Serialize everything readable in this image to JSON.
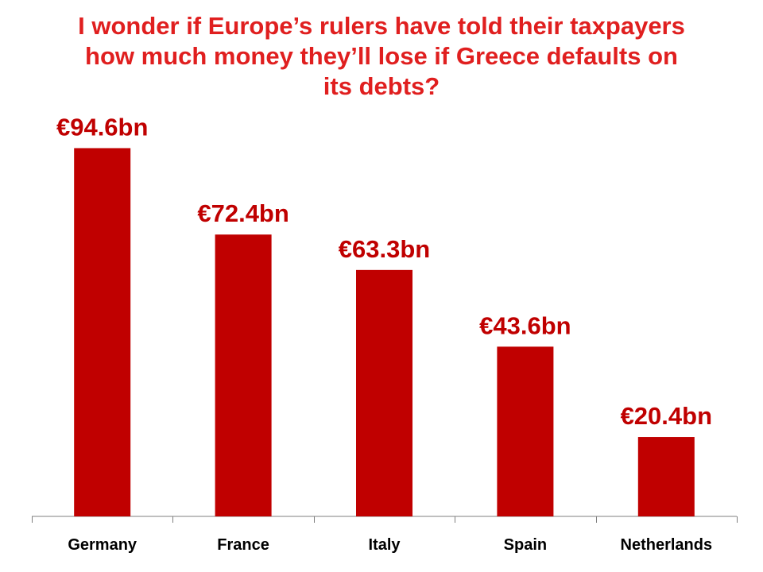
{
  "title_lines": [
    "I wonder if Europe’s rulers have told their taxpayers",
    "how much money they’ll lose if Greece defaults on",
    "its debts?"
  ],
  "colors": {
    "bar": "#c00000",
    "title": "#e01f1f",
    "value_label": "#c00000",
    "axis": "#7f7f7f"
  },
  "chart_data": {
    "type": "bar",
    "title": "I wonder if Europe’s rulers have told their taxpayers how much money they’ll lose if Greece defaults on its debts?",
    "categories": [
      "Germany",
      "France",
      "Italy",
      "Spain",
      "Netherlands"
    ],
    "values": [
      94.6,
      72.4,
      63.3,
      43.6,
      20.4
    ],
    "value_labels": [
      "€94.6bn",
      "€72.4bn",
      "€63.3bn",
      "€43.6bn",
      "€20.4bn"
    ],
    "unit": "€bn",
    "xlabel": "",
    "ylabel": "",
    "ylim": [
      0,
      100
    ],
    "grid": false,
    "legend": "none"
  }
}
